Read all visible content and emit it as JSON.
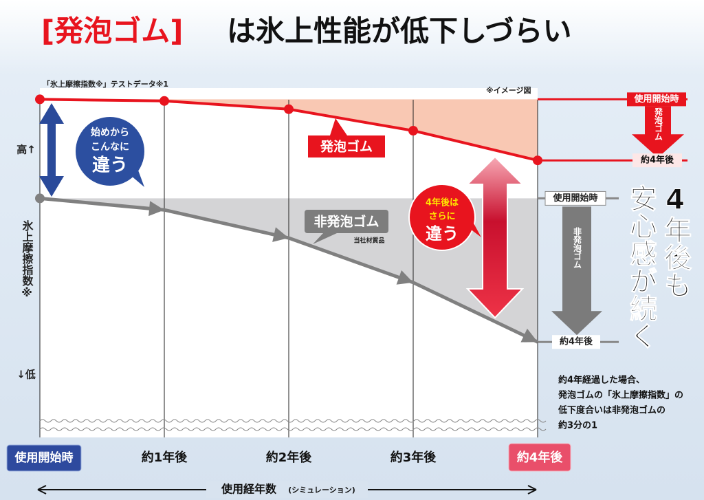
{
  "chart_data": {
    "type": "line",
    "title": {
      "highlight": "[発泡ゴム]",
      "rest": "は氷上性能が低下しづらい"
    },
    "subtitle": "「氷上摩擦指数※」テストデータ※1",
    "note": "※イメージ図",
    "ylabel_high": "高↑",
    "ylabel": "氷上摩擦指数※",
    "ylabel_low": "↓低",
    "xlabel": "使用経年数",
    "xlabel_note": "(シミュレーション)",
    "categories": [
      "使用開始時",
      "約1年後",
      "約2年後",
      "約3年後",
      "約4年後"
    ],
    "ylim": [
      0,
      100
    ],
    "series": [
      {
        "name": "発泡ゴム",
        "color": "#e8141e",
        "values": [
          97,
          96.5,
          94,
          87.5,
          78.5
        ]
      },
      {
        "name": "非発泡ゴム",
        "color": "#808080",
        "values": [
          67,
          63.5,
          55,
          41.5,
          23.5
        ],
        "note": "当社材質品"
      }
    ],
    "callouts": [
      [
        "始めから",
        "こんなに",
        "違う"
      ],
      [
        "4年後は",
        "さらに",
        "違う"
      ]
    ],
    "red_arrow": {
      "start": "使用開始時",
      "label": "発泡ゴム",
      "end": "約4年後"
    },
    "gray_arrow": {
      "start": "使用開始時",
      "label": "非発泡ゴム",
      "end": "約4年後"
    },
    "headline": [
      "4年後も",
      "安心感が続く"
    ],
    "summary": [
      "約4年経過した場合、",
      "発泡ゴムの「氷上摩擦指数」の",
      "低下度合いは非発泡ゴムの",
      "約3分の1"
    ]
  }
}
